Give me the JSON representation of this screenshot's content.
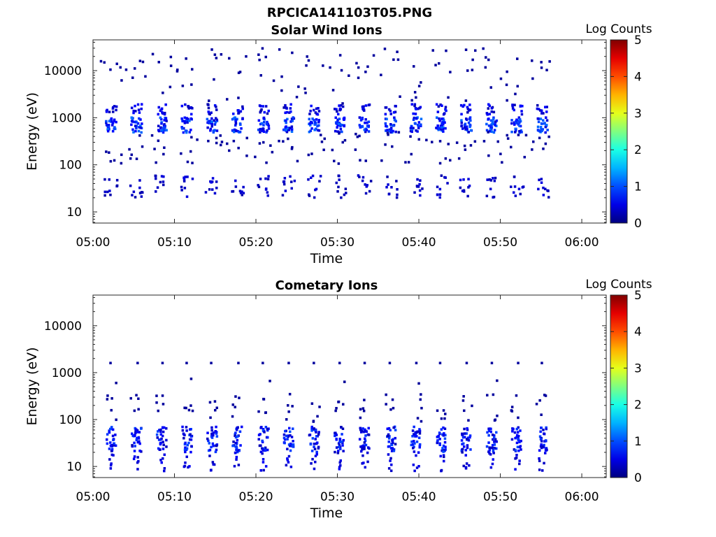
{
  "figure_title": "RPCICA141103T05.PNG",
  "chart_data": [
    {
      "type": "heatmap",
      "title": "Solar Wind Ions",
      "xlabel": "Time",
      "ylabel": "Energy (eV)",
      "x_ticks": [
        "05:00",
        "05:10",
        "05:20",
        "05:30",
        "05:40",
        "05:50",
        "06:00"
      ],
      "x_range_minutes": [
        0,
        63
      ],
      "y_scale": "log",
      "y_ticks": [
        10,
        100,
        1000,
        10000
      ],
      "y_ticklabels": [
        "10",
        "100",
        "1000",
        "10000"
      ],
      "y_range": [
        5.8,
        45000
      ],
      "colorbar": {
        "label": "Log Counts",
        "ticks": [
          "0",
          "1",
          "2",
          "3",
          "4",
          "5"
        ],
        "range": [
          0,
          5
        ],
        "colormap": "jet"
      },
      "pulse_minutes": [
        2.1,
        5.2,
        8.3,
        11.4,
        14.5,
        17.6,
        20.8,
        23.9,
        27.0,
        30.1,
        33.2,
        36.4,
        39.5,
        42.6,
        45.7,
        48.8,
        51.9,
        55.0
      ],
      "peak_energies_ev": [
        700,
        1500
      ],
      "peak_log_counts": 1.2,
      "low_energy_band_ev": [
        20,
        60
      ]
    },
    {
      "type": "heatmap",
      "title": "Cometary Ions",
      "xlabel": "Time",
      "ylabel": "Energy (eV)",
      "x_ticks": [
        "05:00",
        "05:10",
        "05:20",
        "05:30",
        "05:40",
        "05:50",
        "06:00"
      ],
      "x_range_minutes": [
        0,
        63
      ],
      "y_scale": "log",
      "y_ticks": [
        10,
        100,
        1000,
        10000
      ],
      "y_ticklabels": [
        "10",
        "100",
        "1000",
        "10000"
      ],
      "y_range": [
        5.8,
        45000
      ],
      "colorbar": {
        "label": "Log Counts",
        "ticks": [
          "0",
          "1",
          "2",
          "3",
          "4",
          "5"
        ],
        "range": [
          0,
          5
        ],
        "colormap": "jet"
      },
      "pulse_minutes": [
        2.1,
        5.2,
        8.3,
        11.4,
        14.5,
        17.6,
        20.8,
        23.9,
        27.0,
        30.1,
        33.2,
        36.4,
        39.5,
        42.6,
        45.7,
        48.8,
        51.9,
        55.0
      ],
      "peak_energies_ev": [
        20,
        70
      ],
      "peak_log_counts": 1.0,
      "sparse_energy_ev": [
        1600
      ]
    }
  ]
}
